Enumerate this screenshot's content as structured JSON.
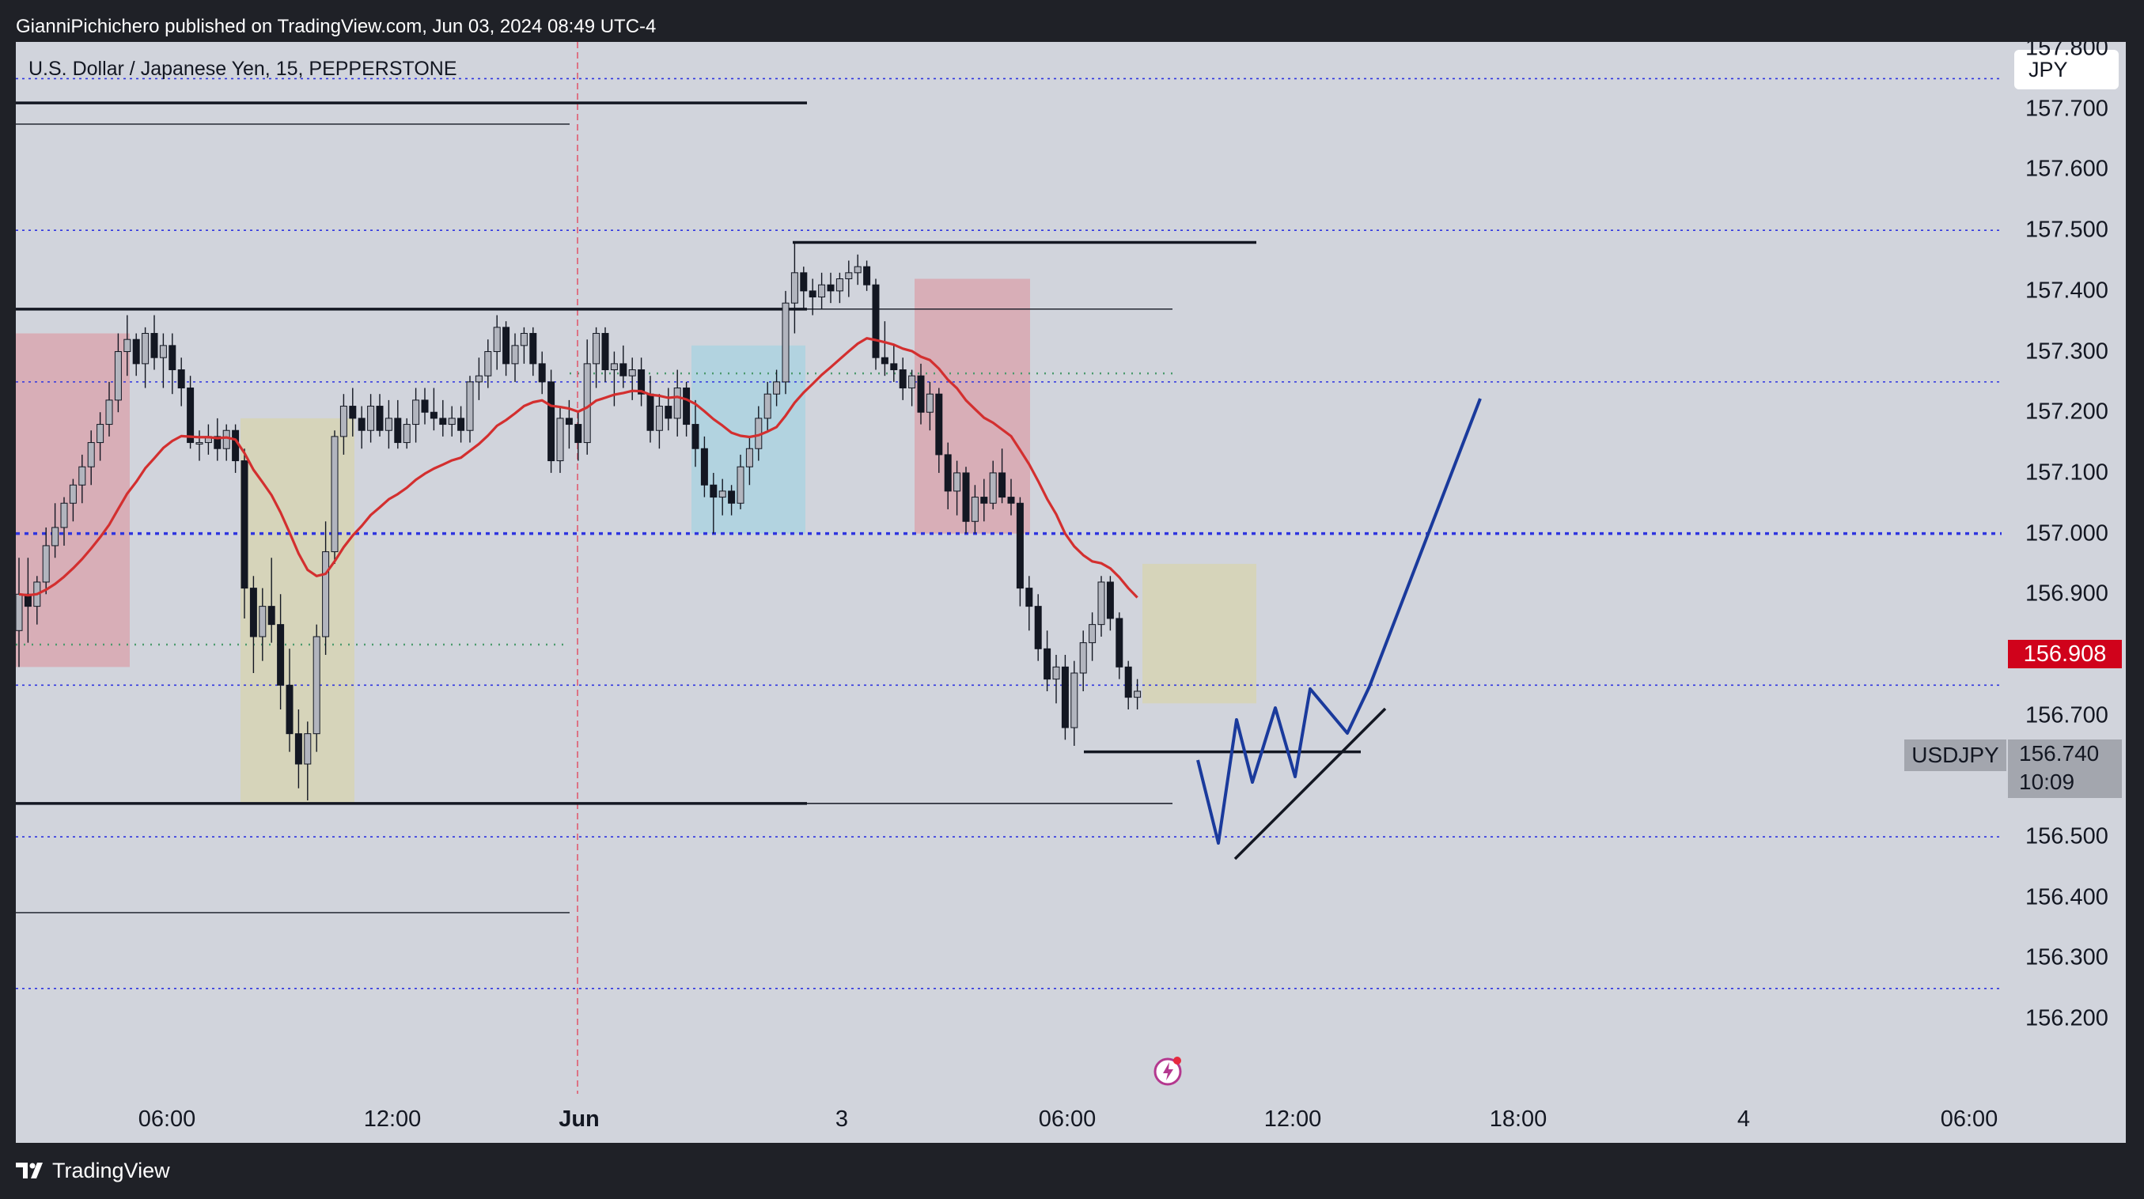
{
  "header": {
    "publisher_line": "GianniPichichero published on TradingView.com, Jun 03, 2024 08:49 UTC-4"
  },
  "chart_title": "U.S. Dollar / Japanese Yen, 15, PEPPERSTONE",
  "currency": "JPY",
  "footer": {
    "brand": "TradingView"
  },
  "price_axis": [
    "157.800",
    "157.700",
    "157.600",
    "157.500",
    "157.400",
    "157.300",
    "157.200",
    "157.100",
    "157.000",
    "156.900",
    "156.800",
    "156.700",
    "156.600",
    "156.500",
    "156.400",
    "156.300",
    "156.200"
  ],
  "time_axis": [
    "06:00",
    "12:00",
    "Jun",
    "3",
    "06:00",
    "12:00",
    "18:00",
    "4",
    "06:00"
  ],
  "live_price": "156.908",
  "symbol_tag": "USDJPY",
  "last_price": "156.740",
  "countdown": "10:09",
  "colors": {
    "background": "#d1d4dc",
    "frame": "#1f2127",
    "ema": "#d32f2f",
    "projection": "#1a3a9c",
    "bull_candle": "#b2b5be",
    "bear_candle": "#131722",
    "level_dotted": "#2f35e0"
  },
  "chart_data": {
    "type": "candlestick",
    "symbol": "USDJPY",
    "title": "U.S. Dollar / Japanese Yen, 15, PEPPERSTONE",
    "interval": "15",
    "ylim": [
      156.2,
      157.82
    ],
    "price_ticks": [
      157.8,
      157.7,
      157.6,
      157.5,
      157.4,
      157.3,
      157.2,
      157.1,
      157.0,
      156.9,
      156.8,
      156.7,
      156.6,
      156.5,
      156.4,
      156.3,
      156.2
    ],
    "x_ticks": [
      "06:00",
      "12:00",
      "Jun",
      "3",
      "06:00",
      "12:00",
      "18:00",
      "4",
      "06:00"
    ],
    "dotted_levels": [
      157.75,
      157.5,
      157.25,
      157.0,
      156.75,
      156.5,
      156.25
    ],
    "key_level": 157.0,
    "horizontal_lines": [
      157.71,
      157.37,
      156.555,
      157.48,
      156.64
    ],
    "ema_color": "#d32f2f",
    "last": 156.74,
    "live": 156.908,
    "projection": "down to ~156.60, zigzag up, then rally above 157.30",
    "candles": [
      [
        156.84,
        156.96,
        156.78,
        156.9
      ],
      [
        156.9,
        156.96,
        156.82,
        156.88
      ],
      [
        156.88,
        156.93,
        156.85,
        156.92
      ],
      [
        156.92,
        157.01,
        156.9,
        156.98
      ],
      [
        156.98,
        157.05,
        156.96,
        157.01
      ],
      [
        157.01,
        157.06,
        156.98,
        157.05
      ],
      [
        157.05,
        157.09,
        157.02,
        157.08
      ],
      [
        157.08,
        157.13,
        157.05,
        157.11
      ],
      [
        157.11,
        157.17,
        157.08,
        157.15
      ],
      [
        157.15,
        157.2,
        157.12,
        157.18
      ],
      [
        157.18,
        157.25,
        157.16,
        157.22
      ],
      [
        157.22,
        157.33,
        157.2,
        157.3
      ],
      [
        157.3,
        157.36,
        157.26,
        157.32
      ],
      [
        157.32,
        157.33,
        157.26,
        157.28
      ],
      [
        157.28,
        157.34,
        157.24,
        157.33
      ],
      [
        157.33,
        157.36,
        157.27,
        157.29
      ],
      [
        157.29,
        157.33,
        157.24,
        157.31
      ],
      [
        157.31,
        157.33,
        157.23,
        157.27
      ],
      [
        157.27,
        157.29,
        157.21,
        157.24
      ],
      [
        157.24,
        157.26,
        157.14,
        157.15
      ],
      [
        157.15,
        157.17,
        157.12,
        157.15
      ],
      [
        157.15,
        157.18,
        157.13,
        157.16
      ],
      [
        157.16,
        157.19,
        157.12,
        157.14
      ],
      [
        157.14,
        157.18,
        157.12,
        157.17
      ],
      [
        157.17,
        157.18,
        157.1,
        157.12
      ],
      [
        157.12,
        157.14,
        156.86,
        156.91
      ],
      [
        156.91,
        156.93,
        156.77,
        156.83
      ],
      [
        156.83,
        156.91,
        156.79,
        156.88
      ],
      [
        156.88,
        156.96,
        156.82,
        156.85
      ],
      [
        156.85,
        156.9,
        156.71,
        156.75
      ],
      [
        156.75,
        156.81,
        156.64,
        156.67
      ],
      [
        156.67,
        156.71,
        156.58,
        156.62
      ],
      [
        156.62,
        156.69,
        156.56,
        156.67
      ],
      [
        156.67,
        156.85,
        156.64,
        156.83
      ],
      [
        156.83,
        157.02,
        156.8,
        156.97
      ],
      [
        156.97,
        157.17,
        156.95,
        157.16
      ],
      [
        157.16,
        157.23,
        157.13,
        157.21
      ],
      [
        157.21,
        157.24,
        157.16,
        157.19
      ],
      [
        157.19,
        157.21,
        157.14,
        157.17
      ],
      [
        157.17,
        157.23,
        157.15,
        157.21
      ],
      [
        157.21,
        157.23,
        157.16,
        157.17
      ],
      [
        157.17,
        157.22,
        157.14,
        157.19
      ],
      [
        157.19,
        157.22,
        157.14,
        157.15
      ],
      [
        157.15,
        157.19,
        157.14,
        157.18
      ],
      [
        157.18,
        157.24,
        157.15,
        157.22
      ],
      [
        157.22,
        157.24,
        157.18,
        157.2
      ],
      [
        157.2,
        157.24,
        157.17,
        157.19
      ],
      [
        157.19,
        157.22,
        157.16,
        157.18
      ],
      [
        157.18,
        157.21,
        157.16,
        157.19
      ],
      [
        157.19,
        157.21,
        157.15,
        157.17
      ],
      [
        157.17,
        157.26,
        157.15,
        157.25
      ],
      [
        157.25,
        157.29,
        157.22,
        157.26
      ],
      [
        157.26,
        157.32,
        157.24,
        157.3
      ],
      [
        157.3,
        157.36,
        157.27,
        157.34
      ],
      [
        157.34,
        157.35,
        157.26,
        157.28
      ],
      [
        157.28,
        157.33,
        157.25,
        157.31
      ],
      [
        157.31,
        157.34,
        157.28,
        157.33
      ],
      [
        157.33,
        157.34,
        157.26,
        157.28
      ],
      [
        157.28,
        157.3,
        157.23,
        157.25
      ],
      [
        157.25,
        157.27,
        157.1,
        157.12
      ],
      [
        157.12,
        157.21,
        157.1,
        157.19
      ],
      [
        157.19,
        157.22,
        157.14,
        157.18
      ],
      [
        157.18,
        157.2,
        157.12,
        157.15
      ],
      [
        157.15,
        157.32,
        157.13,
        157.28
      ],
      [
        157.28,
        157.34,
        157.24,
        157.33
      ],
      [
        157.33,
        157.34,
        157.25,
        157.27
      ],
      [
        157.27,
        157.3,
        157.21,
        157.28
      ],
      [
        157.28,
        157.31,
        157.24,
        157.26
      ],
      [
        157.26,
        157.29,
        157.22,
        157.27
      ],
      [
        157.27,
        157.29,
        157.21,
        157.23
      ],
      [
        157.23,
        157.26,
        157.15,
        157.17
      ],
      [
        157.17,
        157.23,
        157.14,
        157.21
      ],
      [
        157.21,
        157.24,
        157.17,
        157.19
      ],
      [
        157.19,
        157.27,
        157.16,
        157.24
      ],
      [
        157.24,
        157.25,
        157.16,
        157.18
      ],
      [
        157.18,
        157.22,
        157.11,
        157.14
      ],
      [
        157.14,
        157.16,
        157.06,
        157.08
      ],
      [
        157.08,
        157.1,
        157.0,
        157.06
      ],
      [
        157.06,
        157.09,
        157.03,
        157.07
      ],
      [
        157.07,
        157.08,
        157.03,
        157.05
      ],
      [
        157.05,
        157.13,
        157.04,
        157.11
      ],
      [
        157.11,
        157.16,
        157.08,
        157.14
      ],
      [
        157.14,
        157.21,
        157.12,
        157.19
      ],
      [
        157.19,
        157.25,
        157.17,
        157.23
      ],
      [
        157.23,
        157.27,
        157.21,
        157.25
      ],
      [
        157.25,
        157.4,
        157.23,
        157.38
      ],
      [
        157.38,
        157.48,
        157.33,
        157.43
      ],
      [
        157.43,
        157.44,
        157.37,
        157.4
      ],
      [
        157.4,
        157.42,
        157.36,
        157.39
      ],
      [
        157.39,
        157.43,
        157.37,
        157.41
      ],
      [
        157.41,
        157.43,
        157.38,
        157.4
      ],
      [
        157.4,
        157.43,
        157.38,
        157.42
      ],
      [
        157.42,
        157.45,
        157.39,
        157.43
      ],
      [
        157.43,
        157.46,
        157.41,
        157.44
      ],
      [
        157.44,
        157.45,
        157.4,
        157.41
      ],
      [
        157.41,
        157.42,
        157.27,
        157.29
      ],
      [
        157.29,
        157.35,
        157.26,
        157.28
      ],
      [
        157.28,
        157.31,
        157.25,
        157.27
      ],
      [
        157.27,
        157.29,
        157.22,
        157.24
      ],
      [
        157.24,
        157.27,
        157.21,
        157.26
      ],
      [
        157.26,
        157.28,
        157.18,
        157.2
      ],
      [
        157.2,
        157.25,
        157.17,
        157.23
      ],
      [
        157.23,
        157.24,
        157.1,
        157.13
      ],
      [
        157.13,
        157.15,
        157.04,
        157.07
      ],
      [
        157.07,
        157.12,
        157.03,
        157.1
      ],
      [
        157.1,
        157.11,
        157.0,
        157.02
      ],
      [
        157.02,
        157.08,
        157.0,
        157.06
      ],
      [
        157.06,
        157.09,
        157.02,
        157.05
      ],
      [
        157.05,
        157.12,
        157.04,
        157.1
      ],
      [
        157.1,
        157.14,
        157.05,
        157.06
      ],
      [
        157.06,
        157.09,
        157.03,
        157.05
      ],
      [
        157.05,
        157.06,
        156.88,
        156.91
      ],
      [
        156.91,
        156.93,
        156.84,
        156.88
      ],
      [
        156.88,
        156.9,
        156.79,
        156.81
      ],
      [
        156.81,
        156.84,
        156.74,
        156.76
      ],
      [
        156.76,
        156.8,
        156.72,
        156.78
      ],
      [
        156.78,
        156.8,
        156.66,
        156.68
      ],
      [
        156.68,
        156.79,
        156.65,
        156.77
      ],
      [
        156.77,
        156.84,
        156.74,
        156.82
      ],
      [
        156.82,
        156.87,
        156.79,
        156.85
      ],
      [
        156.85,
        156.93,
        156.83,
        156.92
      ],
      [
        156.92,
        156.93,
        156.84,
        156.86
      ],
      [
        156.86,
        156.87,
        156.76,
        156.78
      ],
      [
        156.78,
        156.79,
        156.71,
        156.73
      ],
      [
        156.73,
        156.76,
        156.71,
        156.74
      ]
    ],
    "zones": [
      {
        "color": "#d9a7b0",
        "top": 157.33,
        "bottom": 156.78
      },
      {
        "color": "#d7d3b4",
        "top": 157.19,
        "bottom": 156.555
      },
      {
        "color": "#add2e0",
        "top": 157.31,
        "bottom": 157.0
      },
      {
        "color": "#d9a7b0",
        "top": 157.42,
        "bottom": 157.0
      },
      {
        "color": "#d7d3b4",
        "top": 156.95,
        "bottom": 156.72
      }
    ]
  }
}
